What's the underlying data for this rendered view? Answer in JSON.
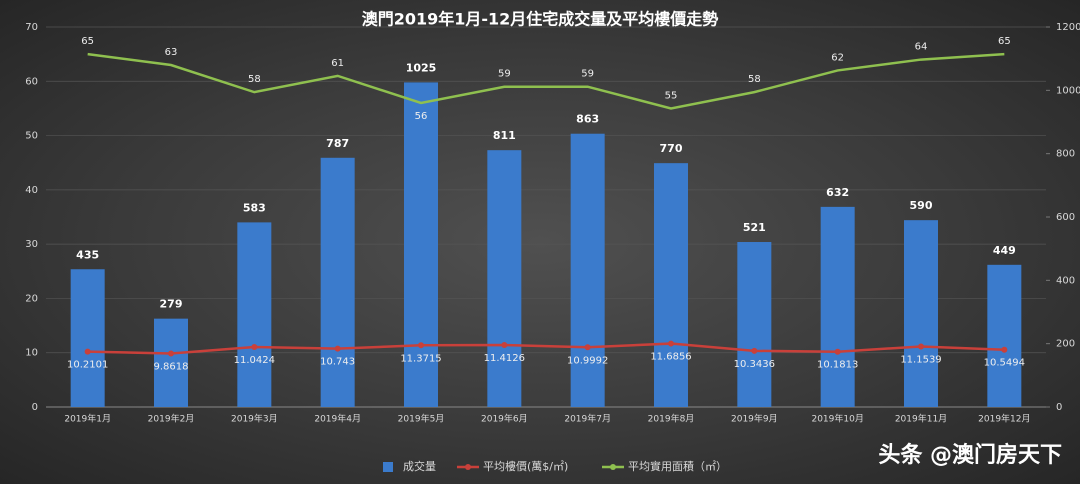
{
  "chart_data": {
    "type": "combo",
    "title": "澳門2019年1月-12月住宅成交量及平均樓價走勢",
    "categories": [
      "2019年1月",
      "2019年2月",
      "2019年3月",
      "2019年4月",
      "2019年5月",
      "2019年6月",
      "2019年7月",
      "2019年8月",
      "2019年9月",
      "2019年10月",
      "2019年11月",
      "2019年12月"
    ],
    "series": [
      {
        "name": "成交量",
        "type": "bar",
        "axis": "y2",
        "color": "#3b7bcc",
        "values": [
          435,
          279,
          583,
          787,
          1025,
          811,
          863,
          770,
          521,
          632,
          590,
          449
        ]
      },
      {
        "name": "平均樓價(萬$/㎡)",
        "type": "line",
        "color": "#c9403a",
        "values": [
          10.2101,
          9.8618,
          11.0424,
          10.743,
          11.3715,
          11.4126,
          10.9992,
          11.6856,
          10.3436,
          10.1813,
          11.1539,
          10.5494
        ]
      },
      {
        "name": "平均實用面積（㎡）",
        "type": "line",
        "color": "#8fc04f",
        "values": [
          65,
          63,
          58,
          61,
          56,
          59,
          59,
          55,
          58,
          62,
          64,
          65
        ]
      }
    ],
    "ylim": [
      0,
      70
    ],
    "yticks": [
      0,
      10,
      20,
      30,
      40,
      50,
      60,
      70
    ],
    "y2lim": [
      0,
      1200
    ],
    "y2ticks": [
      0,
      200,
      400,
      600,
      800,
      1000,
      1200
    ],
    "grid": true,
    "legend": "bottom",
    "watermark": "头条 @澳门房天下"
  }
}
